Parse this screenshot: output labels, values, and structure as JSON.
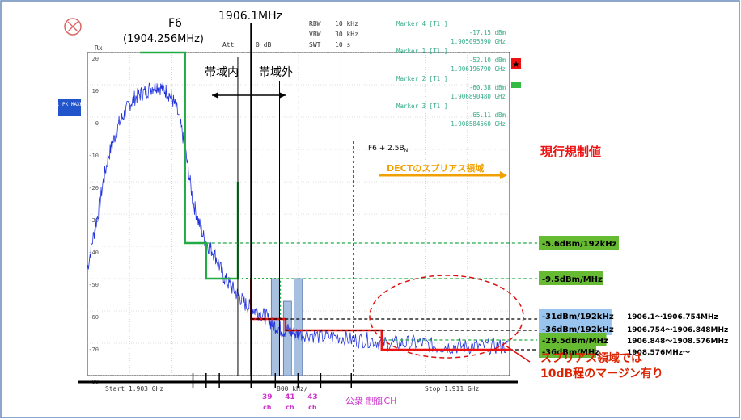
{
  "chart_data": {
    "type": "line",
    "analyzer": {
      "rbw_label": "RBW",
      "rbw": "10 kHz",
      "vbw_label": "VBW",
      "vbw": "30 kHz",
      "att_label": "Att",
      "att": "0 dB",
      "swt_label": "SWT",
      "swt": "10 s",
      "ref_label": "Rx",
      "trace_badge": "1 PK MAXH",
      "start_label": "Start  1.903 GHz",
      "center_label": "800 kHz/",
      "stop_label": "Stop  1.911 GHz"
    },
    "markers": [
      {
        "label": "Marker 4 [T1 ]",
        "value": "-17.15 dBm",
        "freq": "1.905095590 GHz"
      },
      {
        "label": "Marker 1 [T1 ]",
        "value": "-52.10 dBm",
        "freq": "1.906196790 GHz"
      },
      {
        "label": "Marker 2 [T1 ]",
        "value": "-60.38 dBm",
        "freq": "1.906890480 GHz"
      },
      {
        "label": "Marker 3 [T1 ]",
        "value": "-65.11 dBm",
        "freq": "1.908584560 GHz"
      }
    ],
    "ylim": [
      -80,
      20
    ],
    "xlim": [
      1903.0,
      1911.0
    ],
    "y_ticks": [
      "20",
      "10",
      "0",
      "-10",
      "-20",
      "-30",
      "-40",
      "-50",
      "-60",
      "-70",
      "-80"
    ],
    "y_tick_values": [
      20,
      10,
      0,
      -10,
      -20,
      -30,
      -40,
      -50,
      -60,
      -70,
      -80
    ],
    "grid": true,
    "annotations": {
      "f6_label": "F6",
      "f6_freq": "(1904.256MHz)",
      "edge_freq": "1906.1MHz",
      "in_band": "帯域内",
      "out_band": "帯域外",
      "f6_plus": "F6 + 2.5B",
      "f6_plus_sub": "N",
      "current_limits": "現行規制値",
      "dect_region": "DECTのスプリアス領域",
      "note_line1": "スプリアス領域では",
      "note_line2": "10dB程のマージン有り",
      "ch_labels": [
        "39 ch",
        "41 ch",
        "43 ch"
      ],
      "ch_positions": [
        1906.56,
        1906.99,
        1907.42
      ],
      "public_ch": "公衆 制御CH"
    },
    "green_limits": [
      {
        "label": "-5.6dBm/192kHz",
        "value": -5.6
      },
      {
        "label": "-9.5dBm/MHz",
        "value": -9.5
      }
    ],
    "red_limits": [
      {
        "label": "-31dBm/192kHz",
        "range": "1906.1～1906.754MHz",
        "value": -31
      },
      {
        "label": "-36dBm/192kHz",
        "range": "1906.754～1906.848MHz",
        "value": -36
      },
      {
        "label": "-29.5dBm/MHz",
        "range": "1906.848～1908.576MHz",
        "value": -29.5
      },
      {
        "label": "-36dBm/MHz",
        "range": "1908.576MHz～",
        "value": -36
      }
    ],
    "green_trace": [
      [
        1904.0,
        20
      ],
      [
        1904.85,
        20
      ],
      [
        1904.85,
        -39
      ],
      [
        1905.25,
        -39
      ],
      [
        1905.25,
        -50
      ],
      [
        1905.85,
        -50
      ],
      [
        1905.85,
        -20
      ]
    ],
    "green_trace_dotted": [
      [
        1905.85,
        -50
      ],
      [
        1906.1,
        -50
      ],
      [
        1906.1,
        -50
      ],
      [
        1906.65,
        -50
      ],
      [
        1906.65,
        -62.5
      ]
    ],
    "red_trace": [
      [
        1906.1,
        -50
      ],
      [
        1906.1,
        -62.5
      ],
      [
        1906.754,
        -62.5
      ],
      [
        1906.754,
        -66
      ],
      [
        1908.576,
        -66
      ],
      [
        1908.576,
        -72
      ],
      [
        1911.0,
        -72
      ]
    ],
    "series": [
      {
        "values": [
          [
            1903.0,
            -47
          ],
          [
            1903.1,
            -38
          ],
          [
            1903.2,
            -30
          ],
          [
            1903.3,
            -20
          ],
          [
            1903.4,
            -12
          ],
          [
            1903.5,
            -7
          ],
          [
            1903.6,
            -2
          ],
          [
            1903.7,
            1
          ],
          [
            1903.8,
            4
          ],
          [
            1903.9,
            6
          ],
          [
            1904.0,
            7
          ],
          [
            1904.1,
            8
          ],
          [
            1904.2,
            9
          ],
          [
            1904.3,
            10
          ],
          [
            1904.4,
            9
          ],
          [
            1904.5,
            8
          ],
          [
            1904.6,
            6
          ],
          [
            1904.7,
            2
          ],
          [
            1904.8,
            -5
          ],
          [
            1904.9,
            -15
          ],
          [
            1905.0,
            -26
          ],
          [
            1905.1,
            -32
          ],
          [
            1905.2,
            -37
          ],
          [
            1905.3,
            -40
          ],
          [
            1905.4,
            -42
          ],
          [
            1905.5,
            -46
          ],
          [
            1905.6,
            -50
          ],
          [
            1905.7,
            -52
          ],
          [
            1905.8,
            -54
          ],
          [
            1905.9,
            -56
          ],
          [
            1906.0,
            -58
          ],
          [
            1906.1,
            -59
          ],
          [
            1906.2,
            -60
          ],
          [
            1906.3,
            -61
          ],
          [
            1906.4,
            -62
          ],
          [
            1906.5,
            -64
          ],
          [
            1906.6,
            -65
          ],
          [
            1906.7,
            -66
          ],
          [
            1906.8,
            -66
          ],
          [
            1906.9,
            -67
          ],
          [
            1907.0,
            -67
          ],
          [
            1907.2,
            -67
          ],
          [
            1907.4,
            -68
          ],
          [
            1907.6,
            -68
          ],
          [
            1907.8,
            -68
          ],
          [
            1908.0,
            -69
          ],
          [
            1908.2,
            -69
          ],
          [
            1908.4,
            -69
          ],
          [
            1908.6,
            -70
          ],
          [
            1908.8,
            -70
          ],
          [
            1909.0,
            -70
          ],
          [
            1909.2,
            -70
          ],
          [
            1909.4,
            -70
          ],
          [
            1909.6,
            -71
          ],
          [
            1909.8,
            -71
          ],
          [
            1910.0,
            -71
          ],
          [
            1910.2,
            -71
          ],
          [
            1910.4,
            -71
          ],
          [
            1910.6,
            -71
          ],
          [
            1910.8,
            -71
          ],
          [
            1911.0,
            -71
          ]
        ]
      }
    ]
  },
  "colors": {
    "trace": "#2233dd",
    "green": "#22aa44",
    "red": "#ee1111",
    "label_green_bg": "#66bb33",
    "label_blue_bg": "#99c4ee",
    "orange": "#f0a000",
    "magenta": "#cc33cc",
    "dark_red": "#dd2200",
    "marker_teal": "#33aa88",
    "ch_bar": "#a8c0e0"
  }
}
